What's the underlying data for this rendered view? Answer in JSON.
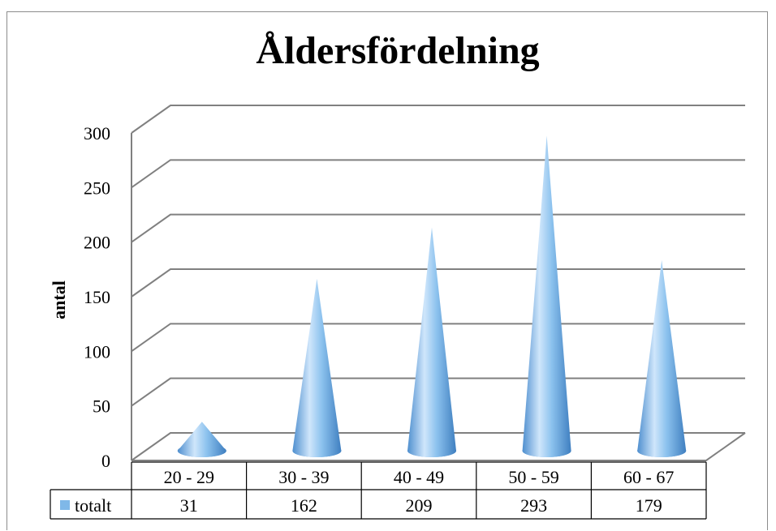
{
  "chart_data": {
    "type": "bar",
    "shape": "cone",
    "title": "Åldersfördelning",
    "xlabel": "",
    "ylabel": "antal",
    "categories": [
      "20 - 29",
      "30 - 39",
      "40 - 49",
      "50 - 59",
      "60 - 67"
    ],
    "series": [
      {
        "name": "totalt",
        "values": [
          31,
          162,
          209,
          293,
          179
        ],
        "color": "#7fb8e8"
      }
    ],
    "ylim": [
      0,
      300
    ],
    "yticks": [
      0,
      50,
      100,
      150,
      200,
      250,
      300
    ],
    "grid": true,
    "data_table": true
  }
}
